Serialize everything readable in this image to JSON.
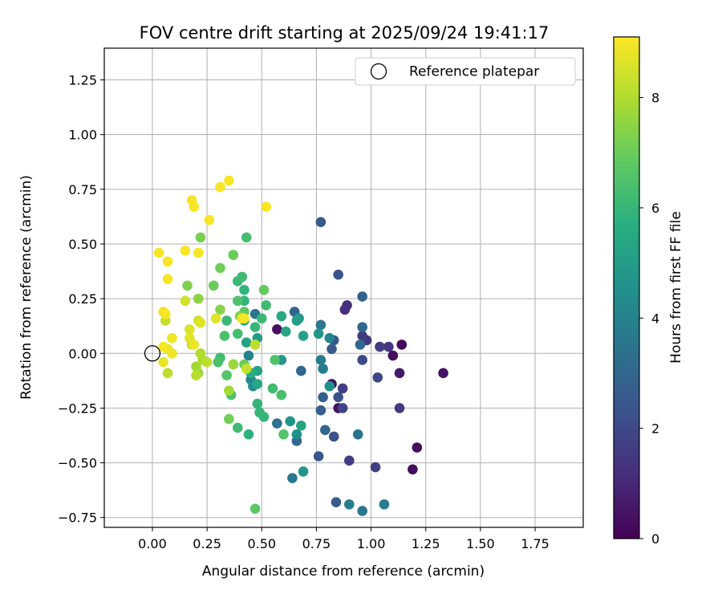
{
  "chart_data": {
    "type": "scatter",
    "title": "FOV centre drift starting at 2025/09/24 19:41:17",
    "xlabel": "Angular distance from reference (arcmin)",
    "ylabel": "Rotation from reference (arcmin)",
    "xlim": [
      -0.22,
      1.97
    ],
    "ylim": [
      -0.795,
      1.395
    ],
    "xticks": [
      0.0,
      0.25,
      0.5,
      0.75,
      1.0,
      1.25,
      1.5,
      1.75
    ],
    "xtick_labels": [
      "0.00",
      "0.25",
      "0.50",
      "0.75",
      "1.00",
      "1.25",
      "1.50",
      "1.75"
    ],
    "yticks": [
      -0.75,
      -0.5,
      -0.25,
      0.0,
      0.25,
      0.5,
      0.75,
      1.0,
      1.25
    ],
    "ytick_labels": [
      "−0.75",
      "−0.50",
      "−0.25",
      "0.00",
      "0.25",
      "0.50",
      "0.75",
      "1.00",
      "1.25"
    ],
    "grid": true,
    "legend": {
      "position": "top-right",
      "entries": [
        "Reference platepar"
      ]
    },
    "reference_point": {
      "x": 0.0,
      "y": 0.0,
      "label": "Reference platepar"
    },
    "colorbar": {
      "label": "Hours from first FF file",
      "range": [
        0,
        9.1
      ],
      "ticks": [
        0,
        2,
        4,
        6,
        8
      ],
      "tick_labels": [
        "0",
        "2",
        "4",
        "6",
        "8"
      ],
      "colormap": "viridis"
    },
    "points": [
      {
        "x": 1.14,
        "y": 0.04,
        "h": 0.2
      },
      {
        "x": 1.1,
        "y": -0.01,
        "h": 0.3
      },
      {
        "x": 1.21,
        "y": -0.43,
        "h": 0.3
      },
      {
        "x": 1.19,
        "y": -0.53,
        "h": 0.3
      },
      {
        "x": 1.33,
        "y": -0.09,
        "h": 0.5
      },
      {
        "x": 1.13,
        "y": -0.09,
        "h": 0.6
      },
      {
        "x": 0.82,
        "y": -0.14,
        "h": 0.4
      },
      {
        "x": 0.85,
        "y": -0.25,
        "h": 0.4
      },
      {
        "x": 0.57,
        "y": 0.11,
        "h": 0.4
      },
      {
        "x": 1.08,
        "y": 0.03,
        "h": 1.4
      },
      {
        "x": 1.04,
        "y": 0.03,
        "h": 1.6
      },
      {
        "x": 1.13,
        "y": -0.25,
        "h": 1.5
      },
      {
        "x": 1.02,
        "y": -0.52,
        "h": 1.7
      },
      {
        "x": 0.9,
        "y": -0.49,
        "h": 1.6
      },
      {
        "x": 1.03,
        "y": -0.11,
        "h": 1.9
      },
      {
        "x": 0.98,
        "y": 0.06,
        "h": 1.5
      },
      {
        "x": 0.89,
        "y": 0.22,
        "h": 1.3
      },
      {
        "x": 0.88,
        "y": 0.2,
        "h": 1.2
      },
      {
        "x": 0.87,
        "y": -0.16,
        "h": 1.7
      },
      {
        "x": 0.87,
        "y": -0.25,
        "h": 1.8
      },
      {
        "x": 0.96,
        "y": 0.08,
        "h": 1.6
      },
      {
        "x": 0.96,
        "y": -0.03,
        "h": 2.0
      },
      {
        "x": 0.85,
        "y": -0.2,
        "h": 2.2
      },
      {
        "x": 0.85,
        "y": 0.36,
        "h": 2.4
      },
      {
        "x": 0.77,
        "y": 0.6,
        "h": 2.6
      },
      {
        "x": 0.83,
        "y": 0.06,
        "h": 2.5
      },
      {
        "x": 0.82,
        "y": 0.02,
        "h": 2.6
      },
      {
        "x": 0.83,
        "y": -0.38,
        "h": 2.2
      },
      {
        "x": 0.84,
        "y": -0.68,
        "h": 2.6
      },
      {
        "x": 0.76,
        "y": -0.47,
        "h": 2.5
      },
      {
        "x": 0.77,
        "y": -0.26,
        "h": 2.7
      },
      {
        "x": 0.78,
        "y": -0.2,
        "h": 2.8
      },
      {
        "x": 0.79,
        "y": -0.35,
        "h": 3.0
      },
      {
        "x": 0.96,
        "y": 0.26,
        "h": 2.8
      },
      {
        "x": 0.96,
        "y": 0.12,
        "h": 3.0
      },
      {
        "x": 0.95,
        "y": 0.04,
        "h": 3.1
      },
      {
        "x": 0.94,
        "y": -0.37,
        "h": 3.5
      },
      {
        "x": 0.96,
        "y": -0.72,
        "h": 3.6
      },
      {
        "x": 0.9,
        "y": -0.69,
        "h": 3.8
      },
      {
        "x": 1.06,
        "y": -0.69,
        "h": 3.8
      },
      {
        "x": 0.65,
        "y": 0.19,
        "h": 2.9
      },
      {
        "x": 0.68,
        "y": -0.08,
        "h": 3.0
      },
      {
        "x": 0.66,
        "y": -0.4,
        "h": 3.0
      },
      {
        "x": 0.64,
        "y": -0.57,
        "h": 3.6
      },
      {
        "x": 0.57,
        "y": -0.32,
        "h": 3.4
      },
      {
        "x": 0.77,
        "y": 0.13,
        "h": 3.6
      },
      {
        "x": 0.77,
        "y": -0.03,
        "h": 3.9
      },
      {
        "x": 0.78,
        "y": -0.07,
        "h": 3.8
      },
      {
        "x": 0.81,
        "y": 0.07,
        "h": 4.2
      },
      {
        "x": 0.81,
        "y": -0.15,
        "h": 4.6
      },
      {
        "x": 0.76,
        "y": 0.09,
        "h": 4.7
      },
      {
        "x": 0.67,
        "y": 0.16,
        "h": 4.8
      },
      {
        "x": 0.66,
        "y": 0.15,
        "h": 5.0
      },
      {
        "x": 0.69,
        "y": -0.54,
        "h": 4.7
      },
      {
        "x": 0.66,
        "y": -0.37,
        "h": 4.5
      },
      {
        "x": 0.63,
        "y": -0.31,
        "h": 4.7
      },
      {
        "x": 0.68,
        "y": -0.33,
        "h": 5.3
      },
      {
        "x": 0.59,
        "y": -0.03,
        "h": 4.8
      },
      {
        "x": 0.69,
        "y": 0.08,
        "h": 5.1
      },
      {
        "x": 0.61,
        "y": 0.1,
        "h": 5.3
      },
      {
        "x": 0.59,
        "y": 0.17,
        "h": 5.5
      },
      {
        "x": 0.47,
        "y": 0.18,
        "h": 3.6
      },
      {
        "x": 0.44,
        "y": -0.01,
        "h": 4.0
      },
      {
        "x": 0.45,
        "y": -0.12,
        "h": 4.2
      },
      {
        "x": 0.46,
        "y": -0.15,
        "h": 4.5
      },
      {
        "x": 0.48,
        "y": 0.07,
        "h": 5.0
      },
      {
        "x": 0.48,
        "y": -0.08,
        "h": 5.2
      },
      {
        "x": 0.48,
        "y": -0.14,
        "h": 5.4
      },
      {
        "x": 0.43,
        "y": 0.05,
        "h": 5.2
      },
      {
        "x": 0.42,
        "y": 0.15,
        "h": 5.6
      },
      {
        "x": 0.44,
        "y": -0.37,
        "h": 5.8
      },
      {
        "x": 0.45,
        "y": -0.09,
        "h": 5.7
      },
      {
        "x": 0.48,
        "y": -0.23,
        "h": 6.0
      },
      {
        "x": 0.49,
        "y": -0.27,
        "h": 6.0
      },
      {
        "x": 0.51,
        "y": -0.29,
        "h": 6.0
      },
      {
        "x": 0.47,
        "y": 0.12,
        "h": 6.0
      },
      {
        "x": 0.5,
        "y": 0.16,
        "h": 6.1
      },
      {
        "x": 0.52,
        "y": 0.22,
        "h": 6.2
      },
      {
        "x": 0.55,
        "y": -0.16,
        "h": 6.2
      },
      {
        "x": 0.59,
        "y": -0.19,
        "h": 6.4
      },
      {
        "x": 0.6,
        "y": -0.37,
        "h": 6.6
      },
      {
        "x": 0.56,
        "y": -0.03,
        "h": 6.5
      },
      {
        "x": 0.47,
        "y": -0.71,
        "h": 6.8
      },
      {
        "x": 0.51,
        "y": 0.29,
        "h": 6.9
      },
      {
        "x": 0.42,
        "y": 0.29,
        "h": 5.9
      },
      {
        "x": 0.42,
        "y": 0.24,
        "h": 5.9
      },
      {
        "x": 0.39,
        "y": 0.33,
        "h": 6.1
      },
      {
        "x": 0.41,
        "y": 0.35,
        "h": 6.2
      },
      {
        "x": 0.43,
        "y": 0.53,
        "h": 6.3
      },
      {
        "x": 0.39,
        "y": 0.24,
        "h": 6.5
      },
      {
        "x": 0.39,
        "y": 0.09,
        "h": 6.3
      },
      {
        "x": 0.37,
        "y": -0.05,
        "h": 6.4
      },
      {
        "x": 0.39,
        "y": -0.34,
        "h": 6.2
      },
      {
        "x": 0.36,
        "y": -0.19,
        "h": 6.5
      },
      {
        "x": 0.34,
        "y": -0.1,
        "h": 6.6
      },
      {
        "x": 0.34,
        "y": 0.15,
        "h": 6.1
      },
      {
        "x": 0.33,
        "y": 0.08,
        "h": 6.4
      },
      {
        "x": 0.31,
        "y": -0.02,
        "h": 6.2
      },
      {
        "x": 0.3,
        "y": -0.04,
        "h": 6.4
      },
      {
        "x": 0.42,
        "y": 0.19,
        "h": 6.8
      },
      {
        "x": 0.37,
        "y": 0.45,
        "h": 7.0
      },
      {
        "x": 0.31,
        "y": 0.39,
        "h": 7.1
      },
      {
        "x": 0.28,
        "y": 0.31,
        "h": 7.0
      },
      {
        "x": 0.35,
        "y": -0.3,
        "h": 7.1
      },
      {
        "x": 0.42,
        "y": -0.05,
        "h": 7.0
      },
      {
        "x": 0.4,
        "y": 0.17,
        "h": 7.3
      },
      {
        "x": 0.31,
        "y": 0.2,
        "h": 7.4
      },
      {
        "x": 0.22,
        "y": 0.53,
        "h": 7.2
      },
      {
        "x": 0.16,
        "y": 0.31,
        "h": 7.3
      },
      {
        "x": 0.21,
        "y": 0.25,
        "h": 7.5
      },
      {
        "x": 0.35,
        "y": -0.17,
        "h": 7.8
      },
      {
        "x": 0.37,
        "y": -0.05,
        "h": 7.7
      },
      {
        "x": 0.21,
        "y": -0.09,
        "h": 7.6
      },
      {
        "x": 0.2,
        "y": -0.06,
        "h": 7.8
      },
      {
        "x": 0.23,
        "y": -0.03,
        "h": 8.0
      },
      {
        "x": 0.22,
        "y": 0.0,
        "h": 8.0
      },
      {
        "x": 0.2,
        "y": -0.1,
        "h": 8.1
      },
      {
        "x": 0.25,
        "y": -0.04,
        "h": 8.2
      },
      {
        "x": 0.47,
        "y": 0.04,
        "h": 8.2
      },
      {
        "x": 0.43,
        "y": -0.07,
        "h": 8.3
      },
      {
        "x": 0.07,
        "y": -0.09,
        "h": 8.2
      },
      {
        "x": 0.06,
        "y": 0.15,
        "h": 8.3
      },
      {
        "x": 0.18,
        "y": 0.04,
        "h": 8.3
      },
      {
        "x": 0.21,
        "y": 0.15,
        "h": 8.5
      },
      {
        "x": 0.15,
        "y": 0.24,
        "h": 8.5
      },
      {
        "x": 0.29,
        "y": 0.16,
        "h": 8.7
      },
      {
        "x": 0.41,
        "y": 0.16,
        "h": 8.9
      },
      {
        "x": 0.42,
        "y": 0.16,
        "h": 9.0
      },
      {
        "x": 0.22,
        "y": 0.14,
        "h": 8.7
      },
      {
        "x": 0.17,
        "y": 0.11,
        "h": 8.6
      },
      {
        "x": 0.17,
        "y": 0.07,
        "h": 8.7
      },
      {
        "x": 0.19,
        "y": 0.04,
        "h": 8.9
      },
      {
        "x": 0.09,
        "y": 0.07,
        "h": 8.9
      },
      {
        "x": 0.07,
        "y": 0.02,
        "h": 8.8
      },
      {
        "x": 0.09,
        "y": 0.0,
        "h": 8.9
      },
      {
        "x": 0.05,
        "y": 0.03,
        "h": 9.0
      },
      {
        "x": 0.05,
        "y": -0.04,
        "h": 8.8
      },
      {
        "x": 0.05,
        "y": 0.19,
        "h": 8.9
      },
      {
        "x": 0.06,
        "y": 0.18,
        "h": 9.0
      },
      {
        "x": 0.07,
        "y": 0.34,
        "h": 9.0
      },
      {
        "x": 0.07,
        "y": 0.42,
        "h": 9.0
      },
      {
        "x": 0.03,
        "y": 0.46,
        "h": 9.0
      },
      {
        "x": 0.15,
        "y": 0.47,
        "h": 9.0
      },
      {
        "x": 0.21,
        "y": 0.46,
        "h": 9.0
      },
      {
        "x": 0.19,
        "y": 0.67,
        "h": 9.0
      },
      {
        "x": 0.18,
        "y": 0.7,
        "h": 9.0
      },
      {
        "x": 0.26,
        "y": 0.61,
        "h": 9.0
      },
      {
        "x": 0.31,
        "y": 0.76,
        "h": 9.0
      },
      {
        "x": 0.35,
        "y": 0.79,
        "h": 9.0
      },
      {
        "x": 0.52,
        "y": 0.67,
        "h": 9.0
      }
    ]
  }
}
